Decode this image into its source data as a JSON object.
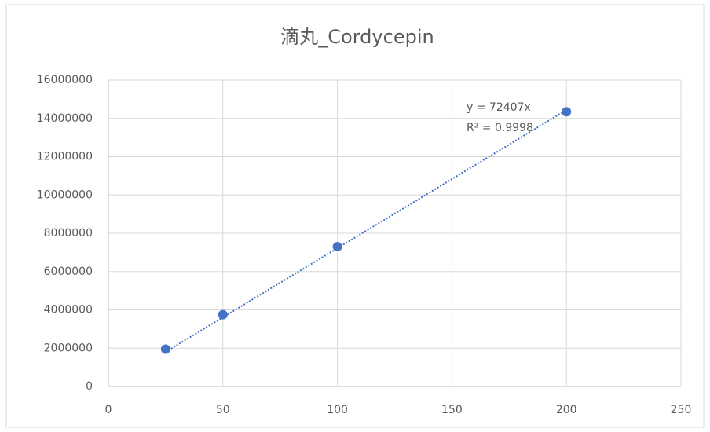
{
  "chart_data": {
    "type": "scatter",
    "title": "滴丸_Cordycepin",
    "series": [
      {
        "name": "Cordycepin",
        "color": "#4472c4",
        "x": [
          25,
          50,
          100,
          200
        ],
        "values": [
          1950000,
          3750000,
          7300000,
          14350000
        ]
      }
    ],
    "trendline": {
      "color": "#4472c4",
      "style": "dotted"
    },
    "annotations": [
      "y = 72407x",
      "R² = 0.9998"
    ],
    "xlim": [
      0,
      250
    ],
    "xticks": [
      0,
      50,
      100,
      150,
      200,
      250
    ],
    "ylim": [
      0,
      16000000
    ],
    "yticks": [
      0,
      2000000,
      4000000,
      6000000,
      8000000,
      10000000,
      12000000,
      14000000,
      16000000
    ],
    "grid": true,
    "legend": false
  }
}
